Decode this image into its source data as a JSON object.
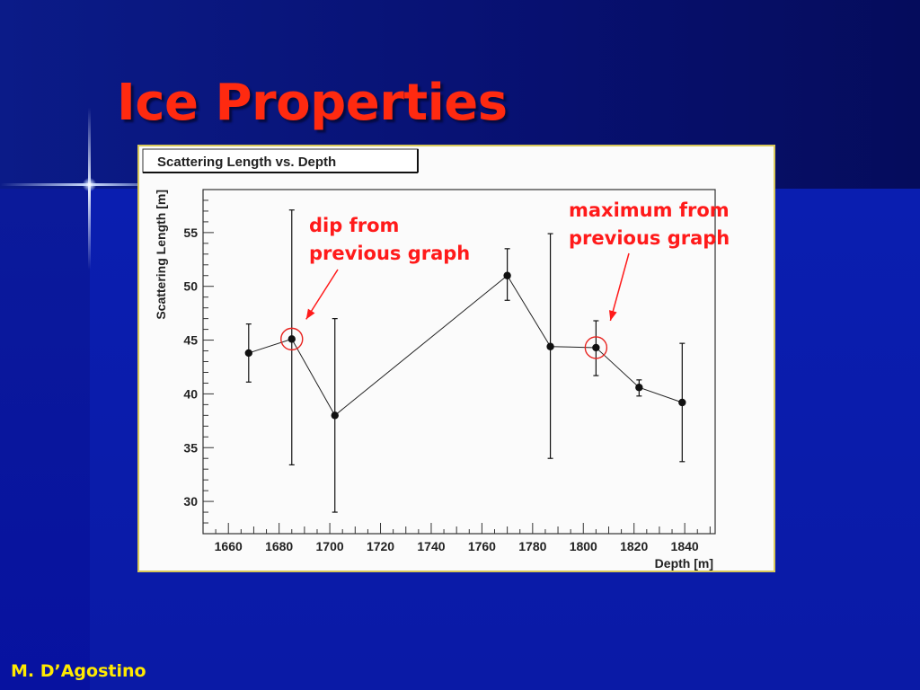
{
  "slide": {
    "title": "Ice Properties",
    "author": "M. D’Agostino",
    "colors": {
      "title": "#ff2a10",
      "author": "#ffea00",
      "background": "#0a1aa6",
      "annotation": "#ff1a1a"
    }
  },
  "annotations": [
    {
      "line1": "dip from",
      "line2": "previous graph",
      "points_to_depth": 1685,
      "points_to_value": 45.1
    },
    {
      "line1": "maximum from",
      "line2": "previous graph",
      "points_to_depth": 1805,
      "points_to_value": 44.3
    }
  ],
  "chart_data": {
    "type": "scatter",
    "title": "Scattering Length vs. Depth",
    "xlabel": "Depth [m]",
    "ylabel": "Scattering Length [m]",
    "xlim": [
      1650,
      1852
    ],
    "ylim": [
      27,
      59
    ],
    "xticks": [
      1660,
      1680,
      1700,
      1720,
      1740,
      1760,
      1780,
      1800,
      1820,
      1840
    ],
    "yticks": [
      30,
      35,
      40,
      45,
      50,
      55
    ],
    "connected": true,
    "error_bars": true,
    "highlighted_depths": [
      1685,
      1805
    ],
    "points": [
      {
        "x": 1668,
        "y": 43.8,
        "ylow": 41.1,
        "yhigh": 46.5
      },
      {
        "x": 1685,
        "y": 45.1,
        "ylow": 33.4,
        "yhigh": 57.1
      },
      {
        "x": 1702,
        "y": 38.0,
        "ylow": 29.0,
        "yhigh": 47.0
      },
      {
        "x": 1770,
        "y": 51.0,
        "ylow": 48.7,
        "yhigh": 53.5
      },
      {
        "x": 1787,
        "y": 44.4,
        "ylow": 34.0,
        "yhigh": 54.9
      },
      {
        "x": 1805,
        "y": 44.3,
        "ylow": 41.7,
        "yhigh": 46.8
      },
      {
        "x": 1822,
        "y": 40.6,
        "ylow": 39.8,
        "yhigh": 41.3
      },
      {
        "x": 1839,
        "y": 39.2,
        "ylow": 33.7,
        "yhigh": 44.7
      }
    ]
  }
}
